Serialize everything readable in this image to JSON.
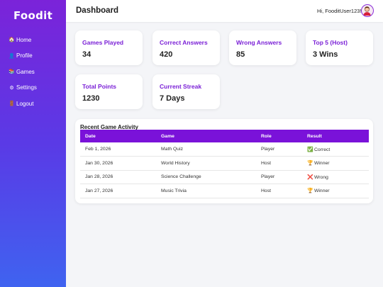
{
  "sidebar": {
    "logo": "Foodit",
    "items": [
      {
        "label": "Home",
        "icon": "home-icon",
        "glyph": "🏠"
      },
      {
        "label": "Profile",
        "icon": "profile-icon",
        "glyph": "👤"
      },
      {
        "label": "Games",
        "icon": "games-icon",
        "glyph": "📚"
      },
      {
        "label": "Settings",
        "icon": "gear-icon",
        "glyph": "⚙"
      },
      {
        "label": "Logout",
        "icon": "logout-icon",
        "glyph": "🚪"
      }
    ]
  },
  "header": {
    "title": "Dashboard",
    "greeting": "Hi, FooditUser123!"
  },
  "stats": [
    {
      "label": "Games Played",
      "value": "34"
    },
    {
      "label": "Correct Answers",
      "value": "420"
    },
    {
      "label": "Wrong Answers",
      "value": "85"
    },
    {
      "label": "Top 5 (Host)",
      "value": "3 Wins"
    },
    {
      "label": "Total Points",
      "value": "1230"
    },
    {
      "label": "Current Streak",
      "value": "7 Days"
    }
  ],
  "activity": {
    "title": "Recent Game Activity",
    "columns": [
      "Date",
      "Game",
      "Role",
      "Result"
    ],
    "rows": [
      {
        "date": "Feb 1, 2026",
        "game": "Math Quiz",
        "role": "Player",
        "result": "Correct",
        "result_icon": "✅"
      },
      {
        "date": "Jan 30, 2026",
        "game": "World History",
        "role": "Host",
        "result": "Winner",
        "result_icon": "🏆"
      },
      {
        "date": "Jan 28, 2026",
        "game": "Science Challenge",
        "role": "Player",
        "result": "Wrong",
        "result_icon": "❌"
      },
      {
        "date": "Jan 27, 2026",
        "game": "Music Trivia",
        "role": "Host",
        "result": "Winner",
        "result_icon": "🏆"
      }
    ]
  },
  "colors": {
    "accent": "#7a12d9",
    "sidebar_top": "#7b23d9",
    "sidebar_bottom": "#3f63f0"
  }
}
